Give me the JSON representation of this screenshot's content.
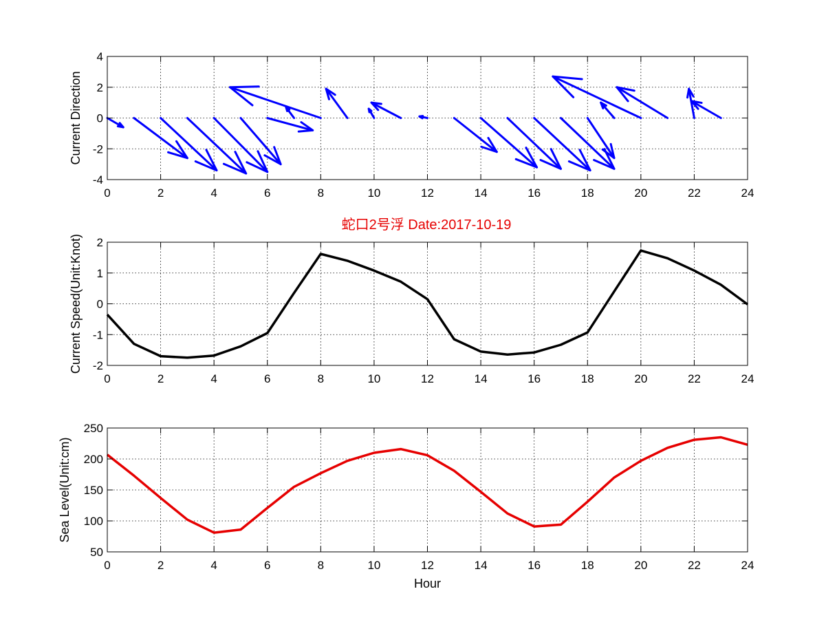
{
  "figure": {
    "title": "蛇口2号浮   Date:2017-10-19",
    "title_color": "#e60000"
  },
  "chart_data": [
    {
      "type": "quiver",
      "ylabel": "Current Direction",
      "xlabel": "",
      "xlim": [
        0,
        24
      ],
      "ylim": [
        -4,
        4
      ],
      "xticks": [
        0,
        2,
        4,
        6,
        8,
        10,
        12,
        14,
        16,
        18,
        20,
        22,
        24
      ],
      "yticks": [
        -4,
        -2,
        0,
        2,
        4
      ],
      "grid": true,
      "color": "#0000ff",
      "x": [
        0,
        1,
        2,
        3,
        4,
        5,
        6,
        7,
        8,
        9,
        10,
        11,
        12,
        13,
        14,
        15,
        16,
        17,
        18,
        19,
        20,
        21,
        22,
        23
      ],
      "u": [
        0.6,
        2.0,
        2.1,
        2.2,
        2.0,
        1.5,
        1.7,
        -0.3,
        -3.4,
        -0.8,
        -0.2,
        -1.1,
        -0.3,
        1.6,
        2.1,
        2.0,
        2.1,
        2.0,
        1.0,
        -0.5,
        -3.3,
        -1.9,
        -0.2,
        -1.1
      ],
      "v": [
        -0.6,
        -2.6,
        -3.4,
        -3.6,
        -3.5,
        -3.0,
        -0.8,
        0.7,
        2.0,
        1.9,
        0.6,
        1.0,
        0.1,
        -2.2,
        -3.2,
        -3.3,
        -3.4,
        -3.3,
        -2.6,
        1.0,
        2.7,
        2.0,
        1.9,
        1.1
      ]
    },
    {
      "type": "line",
      "ylabel": "Current Speed(Unit:Knot)",
      "xlabel": "",
      "xlim": [
        0,
        24
      ],
      "ylim": [
        -2,
        2
      ],
      "xticks": [
        0,
        2,
        4,
        6,
        8,
        10,
        12,
        14,
        16,
        18,
        20,
        22,
        24
      ],
      "yticks": [
        -2,
        -1,
        0,
        1,
        2
      ],
      "grid": true,
      "color": "#000000",
      "x": [
        0,
        1,
        2,
        3,
        4,
        5,
        6,
        7,
        8,
        9,
        10,
        11,
        12,
        13,
        14,
        15,
        16,
        17,
        18,
        19,
        20,
        21,
        22,
        23,
        24
      ],
      "y": [
        -0.35,
        -1.3,
        -1.7,
        -1.75,
        -1.68,
        -1.38,
        -0.95,
        0.35,
        1.62,
        1.4,
        1.08,
        0.72,
        0.15,
        -1.15,
        -1.55,
        -1.65,
        -1.58,
        -1.33,
        -0.93,
        0.4,
        1.73,
        1.48,
        1.08,
        0.62,
        -0.02
      ]
    },
    {
      "type": "line",
      "ylabel": "Sea Level(Unit:cm)",
      "xlabel": "Hour",
      "xlim": [
        0,
        24
      ],
      "ylim": [
        50,
        250
      ],
      "xticks": [
        0,
        2,
        4,
        6,
        8,
        10,
        12,
        14,
        16,
        18,
        20,
        22,
        24
      ],
      "yticks": [
        50,
        100,
        150,
        200,
        250
      ],
      "grid": true,
      "color": "#e60000",
      "x": [
        0,
        1,
        2,
        3,
        4,
        5,
        6,
        7,
        8,
        9,
        10,
        11,
        12,
        13,
        14,
        15,
        16,
        17,
        18,
        19,
        20,
        21,
        22,
        23,
        24
      ],
      "y": [
        207,
        173,
        137,
        102,
        81,
        86,
        121,
        155,
        177,
        197,
        210,
        216,
        206,
        181,
        147,
        112,
        91,
        94,
        131,
        170,
        197,
        218,
        231,
        235,
        223
      ]
    }
  ]
}
